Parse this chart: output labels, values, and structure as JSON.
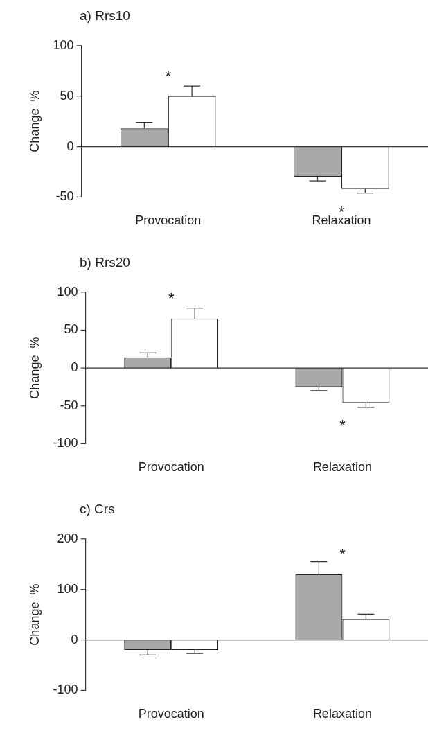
{
  "chart_data": [
    {
      "type": "bar",
      "title": "a)  Rrs10",
      "ylabel": "Change  %",
      "categories": [
        "Provocation",
        "Relaxation"
      ],
      "ylim": [
        -50,
        100
      ],
      "yticks": [
        -50,
        0,
        50,
        100
      ],
      "grid": false,
      "legend": false,
      "series": [
        {
          "color": "#a9a9a9",
          "values": [
            18,
            -30
          ],
          "errors": [
            6,
            4
          ]
        },
        {
          "color": "#ffffff",
          "values": [
            50,
            -42
          ],
          "errors": [
            10,
            4
          ]
        }
      ],
      "ref_lines": [
        {
          "axis": "y",
          "value": 0
        }
      ],
      "annotations": [
        {
          "text": "*",
          "x": "Provocation",
          "y": 50
        },
        {
          "text": "*",
          "x": "Relaxation",
          "y": -42
        }
      ]
    },
    {
      "type": "bar",
      "title": "b)  Rrs20",
      "ylabel": "Change  %",
      "categories": [
        "Provocation",
        "Relaxation"
      ],
      "ylim": [
        -100,
        100
      ],
      "yticks": [
        -100,
        -50,
        0,
        50,
        100
      ],
      "grid": false,
      "legend": false,
      "series": [
        {
          "color": "#a9a9a9",
          "values": [
            14,
            -25
          ],
          "errors": [
            6,
            5
          ]
        },
        {
          "color": "#ffffff",
          "values": [
            65,
            -46
          ],
          "errors": [
            14,
            6
          ]
        }
      ],
      "ref_lines": [
        {
          "axis": "y",
          "value": 0
        }
      ],
      "annotations": [
        {
          "text": "*",
          "x": "Provocation",
          "y": 65
        },
        {
          "text": "*",
          "x": "Relaxation",
          "y": -46
        }
      ]
    },
    {
      "type": "bar",
      "title": "c)  Crs",
      "ylabel": "Change  %",
      "categories": [
        "Provocation",
        "Relaxation"
      ],
      "ylim": [
        -100,
        200
      ],
      "yticks": [
        -100,
        0,
        100,
        200
      ],
      "grid": false,
      "legend": false,
      "series": [
        {
          "color": "#a9a9a9",
          "values": [
            -20,
            130
          ],
          "errors": [
            10,
            25
          ]
        },
        {
          "color": "#ffffff",
          "values": [
            -20,
            41
          ],
          "errors": [
            7,
            10
          ]
        }
      ],
      "ref_lines": [
        {
          "axis": "y",
          "value": 0
        }
      ],
      "annotations": [
        {
          "text": "*",
          "x": "Relaxation",
          "y": 130
        }
      ]
    }
  ]
}
